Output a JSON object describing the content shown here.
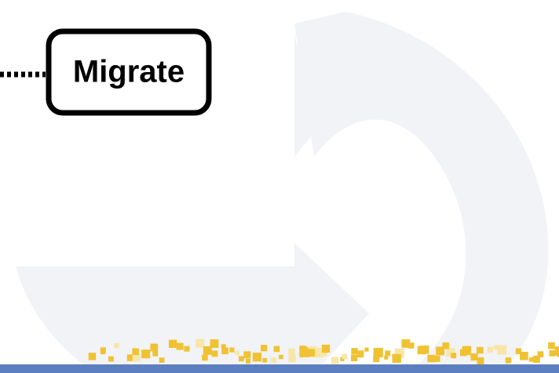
{
  "nodes": [
    {
      "label": "Migrate"
    }
  ]
}
